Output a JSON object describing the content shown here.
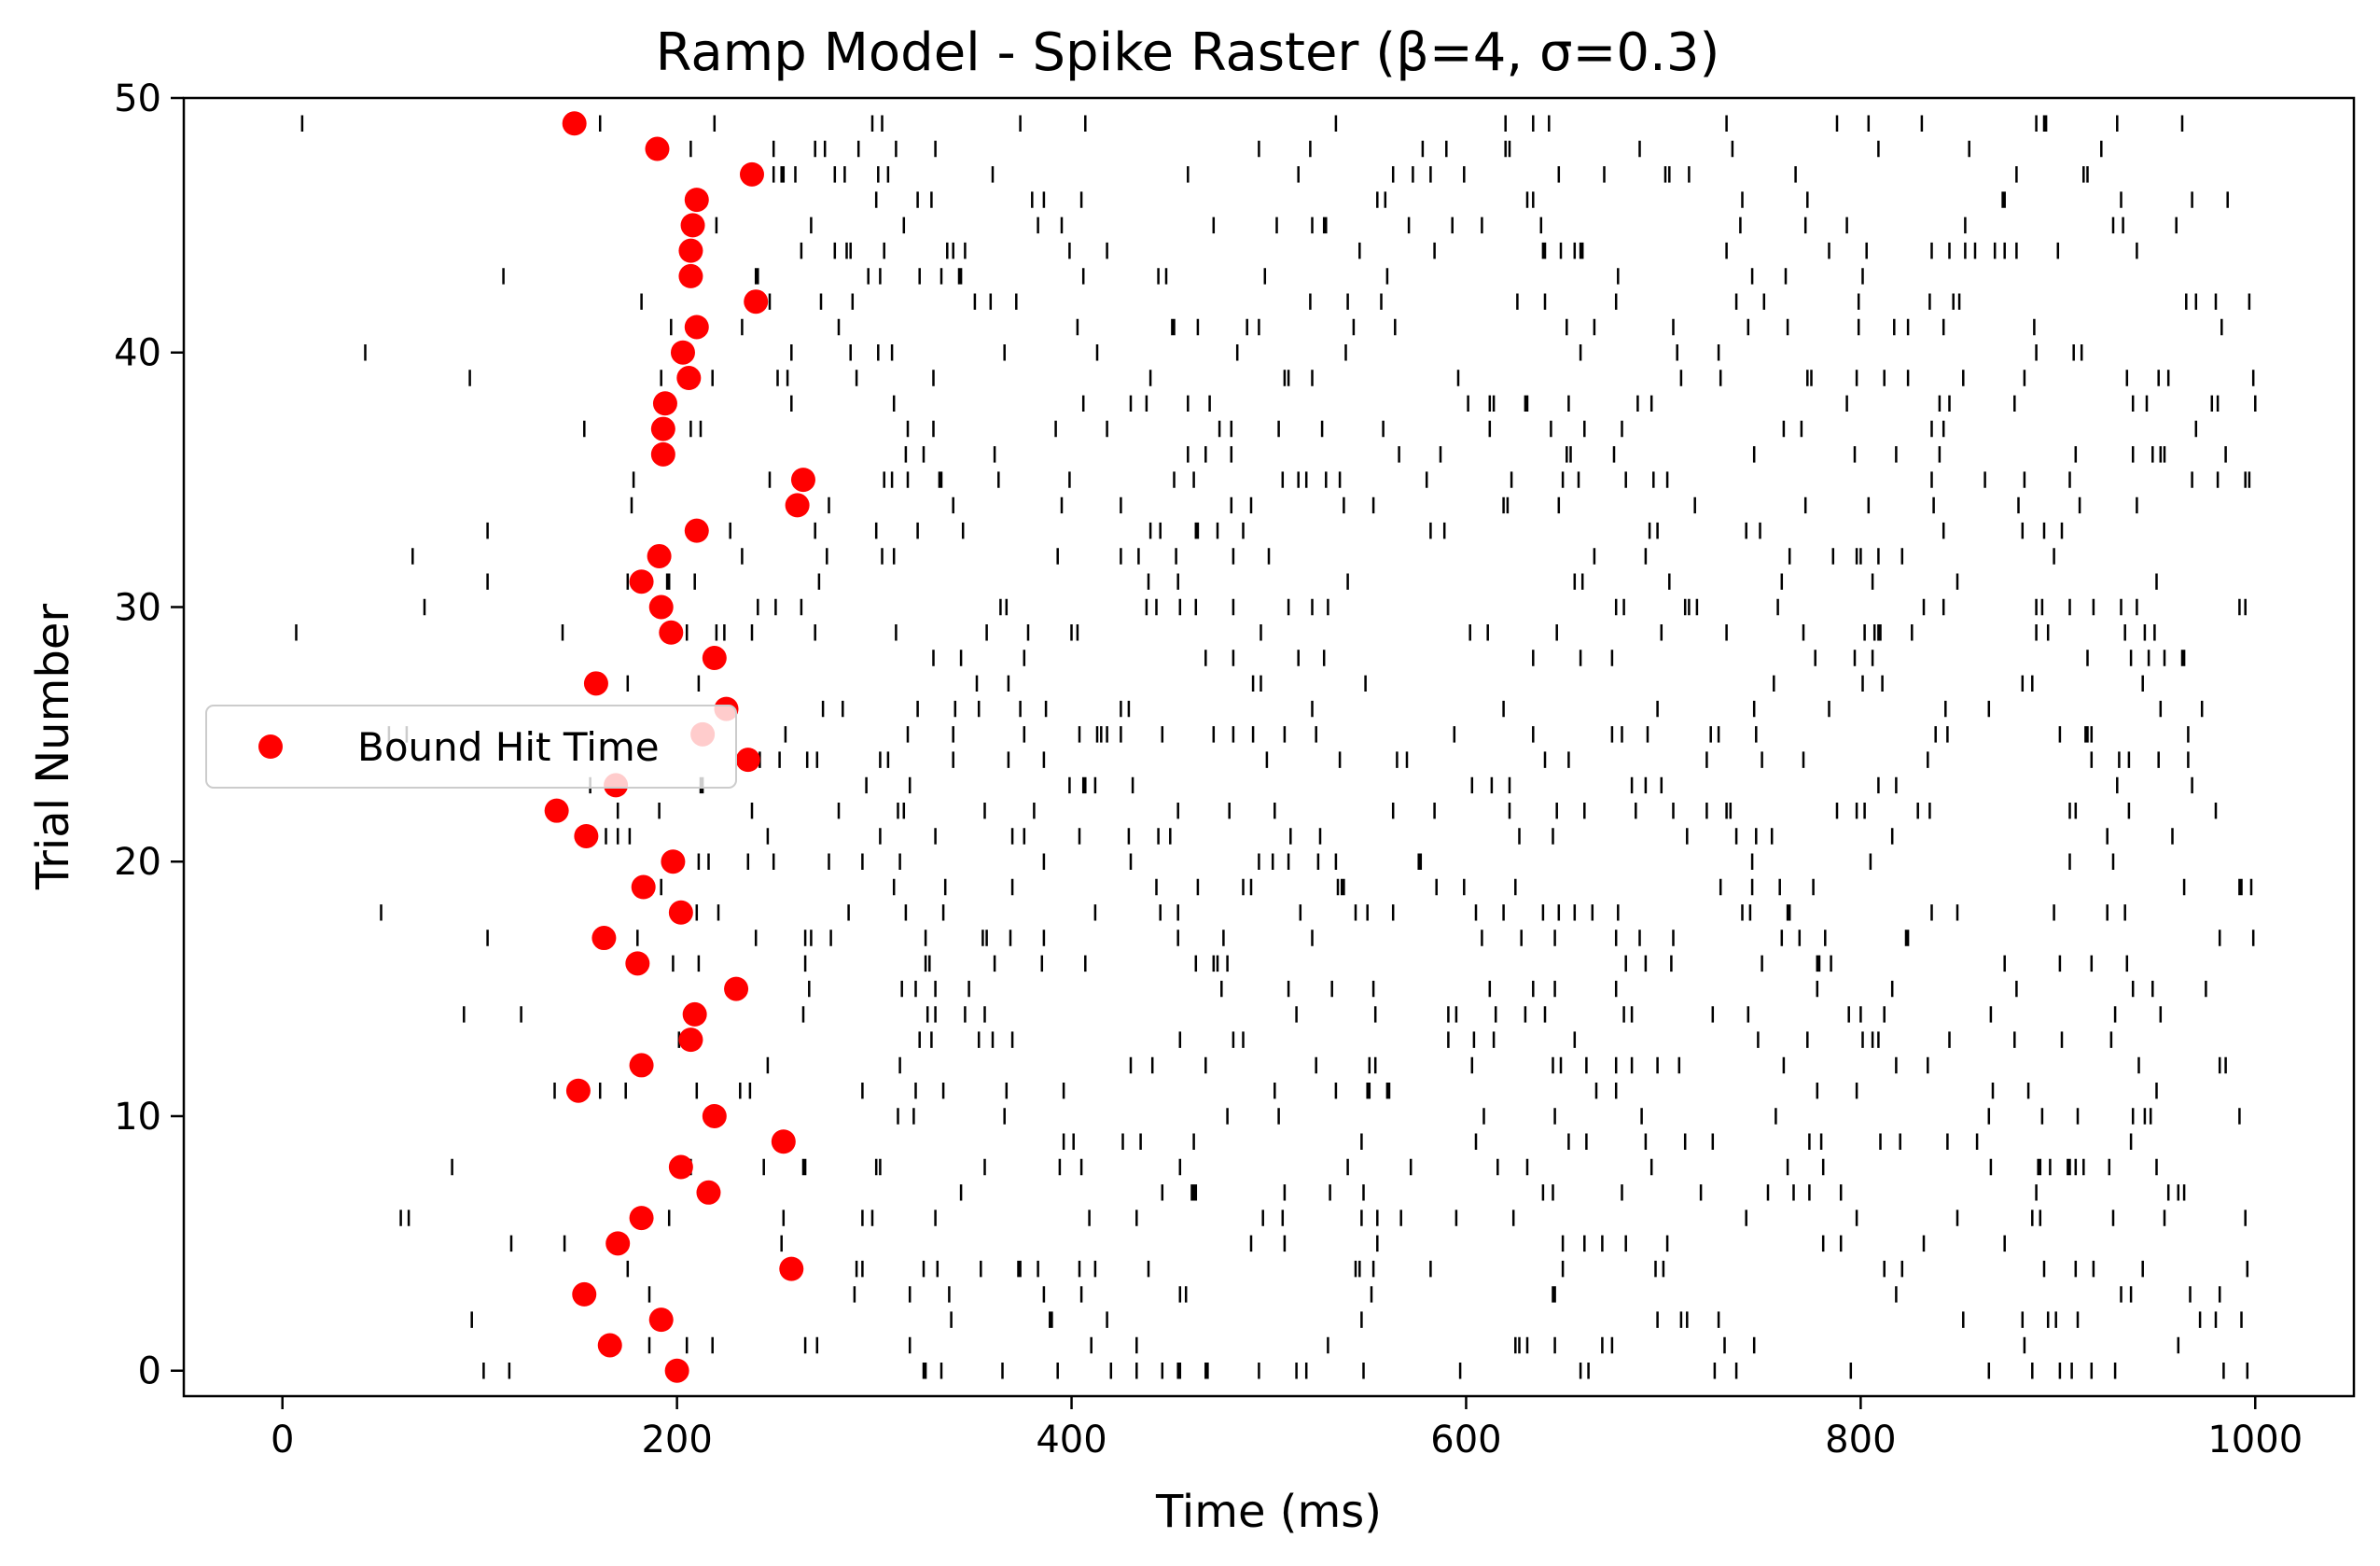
{
  "chart_data": {
    "type": "scatter",
    "title": "Ramp Model - Spike Raster (β=4, σ=0.3)",
    "xlabel": "Time (ms)",
    "ylabel": "Trial Number",
    "xlim": [
      -50,
      1050
    ],
    "ylim": [
      -1,
      50
    ],
    "xticks": [
      0,
      200,
      400,
      600,
      800,
      1000
    ],
    "yticks": [
      0,
      10,
      20,
      30,
      40,
      50
    ],
    "grid": false,
    "raster_color": "#000000",
    "series": [
      {
        "name": "Bound Hit Time",
        "color": "#ff0000",
        "trials": [
          0,
          1,
          2,
          3,
          4,
          5,
          6,
          7,
          8,
          9,
          10,
          11,
          12,
          13,
          14,
          15,
          16,
          17,
          18,
          19,
          20,
          21,
          22,
          23,
          24,
          25,
          26,
          27,
          28,
          29,
          30,
          31,
          32,
          33,
          34,
          35,
          36,
          37,
          38,
          39,
          40,
          41,
          42,
          43,
          44,
          45,
          46,
          47,
          48,
          49
        ],
        "times": [
          200,
          166,
          192,
          153,
          258,
          170,
          182,
          216,
          202,
          254,
          219,
          150,
          182,
          207,
          209,
          230,
          180,
          163,
          202,
          183,
          198,
          154,
          139,
          169,
          236,
          213,
          225,
          159,
          219,
          197,
          192,
          182,
          191,
          210,
          261,
          264,
          193,
          193,
          194,
          206,
          203,
          210,
          240,
          207,
          207,
          208,
          210,
          238,
          190,
          148
        ]
      }
    ],
    "legend": {
      "location": "center-left",
      "entries": [
        "Bound Hit Time"
      ]
    },
    "spike_seed": 20240517,
    "spike_rates": {
      "early": 0.006,
      "late": 0.028
    }
  }
}
